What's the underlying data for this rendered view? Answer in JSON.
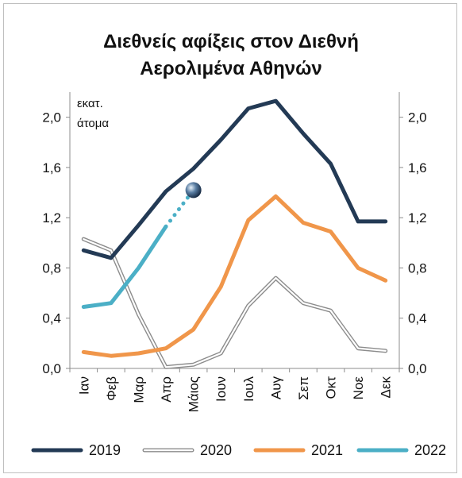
{
  "chart_data": {
    "type": "line",
    "title_lines": [
      "Διεθνείς αφίξεις στον Διεθνή",
      "Αερολιμένα Αθηνών"
    ],
    "unit_lines": [
      "εκατ.",
      "άτομα"
    ],
    "categories": [
      "Ιαν",
      "Φεβ",
      "Μαρ",
      "Απρ",
      "Μάιος",
      "Ιουν",
      "Ιουλ",
      "Αυγ",
      "Σεπ",
      "Οκτ",
      "Νοε",
      "Δεκ"
    ],
    "ylim": [
      0,
      2.2
    ],
    "yticks": [
      "0,0",
      "0,4",
      "0,8",
      "1,2",
      "1,6",
      "2,0"
    ],
    "ytick_values": [
      0,
      0.4,
      0.8,
      1.2,
      1.6,
      2.0
    ],
    "grid": false,
    "legend_position": "bottom",
    "series": [
      {
        "name": "2019",
        "color": "#233a55",
        "style": "solid",
        "values": [
          0.94,
          0.88,
          1.14,
          1.41,
          1.59,
          1.82,
          2.07,
          2.13,
          1.87,
          1.63,
          1.17,
          1.17
        ]
      },
      {
        "name": "2020",
        "color": "#8c8c8c",
        "style": "double",
        "values": [
          1.03,
          0.94,
          0.43,
          0.01,
          0.03,
          0.12,
          0.5,
          0.72,
          0.52,
          0.46,
          0.16,
          0.14
        ]
      },
      {
        "name": "2021",
        "color": "#f0964a",
        "style": "solid",
        "values": [
          0.13,
          0.1,
          0.12,
          0.16,
          0.31,
          0.65,
          1.18,
          1.37,
          1.16,
          1.09,
          0.8,
          0.7
        ]
      },
      {
        "name": "2022",
        "color": "#4bafc6",
        "style": "solid",
        "values": [
          0.49,
          0.52,
          0.8,
          1.13,
          null,
          null,
          null,
          null,
          null,
          null,
          null,
          null
        ],
        "projection": {
          "to_index": 4,
          "value": 1.42,
          "style": "dotted",
          "end_marker": "sphere"
        }
      }
    ]
  }
}
